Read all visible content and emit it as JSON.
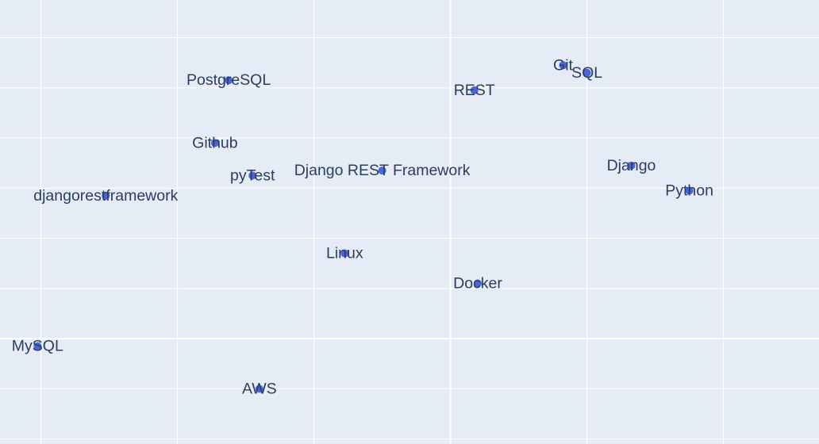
{
  "chart_data": {
    "type": "scatter",
    "title": "",
    "xlabel": "",
    "ylabel": "",
    "grid": true,
    "xlim": [
      -5.6,
      6.4
    ],
    "ylim": [
      -4.1,
      4.75
    ],
    "x_gridlines": [
      -5,
      -3,
      -1,
      1,
      3,
      5
    ],
    "y_gridlines": [
      -4,
      -3,
      -2,
      -1,
      0,
      1,
      2,
      3,
      4
    ],
    "x_zero_line": 1,
    "y_zero_line": -2,
    "marker_color": "#4a63e0",
    "label_color": "#2a3f5f",
    "background_color": "#e5ecf6",
    "points": [
      {
        "label": "PostgreSQL",
        "x": -2.25,
        "y": 3.15
      },
      {
        "label": "Git",
        "x": 2.65,
        "y": 3.45
      },
      {
        "label": "SQL",
        "x": 3.0,
        "y": 3.3
      },
      {
        "label": "REST",
        "x": 1.35,
        "y": 2.95
      },
      {
        "label": "Github",
        "x": -2.45,
        "y": 1.9
      },
      {
        "label": "pyTest",
        "x": -1.9,
        "y": 1.25
      },
      {
        "label": "Django REST Framework",
        "x": 0.0,
        "y": 1.35
      },
      {
        "label": "Django",
        "x": 3.65,
        "y": 1.45
      },
      {
        "label": "Python",
        "x": 4.5,
        "y": 0.95
      },
      {
        "label": "djangorestframework",
        "x": -4.05,
        "y": 0.85
      },
      {
        "label": "Linux",
        "x": -0.55,
        "y": -0.3
      },
      {
        "label": "Docker",
        "x": 1.4,
        "y": -0.9
      },
      {
        "label": "MySQL",
        "x": -5.05,
        "y": -2.15
      },
      {
        "label": "AWS",
        "x": -1.8,
        "y": -3.0
      }
    ]
  }
}
